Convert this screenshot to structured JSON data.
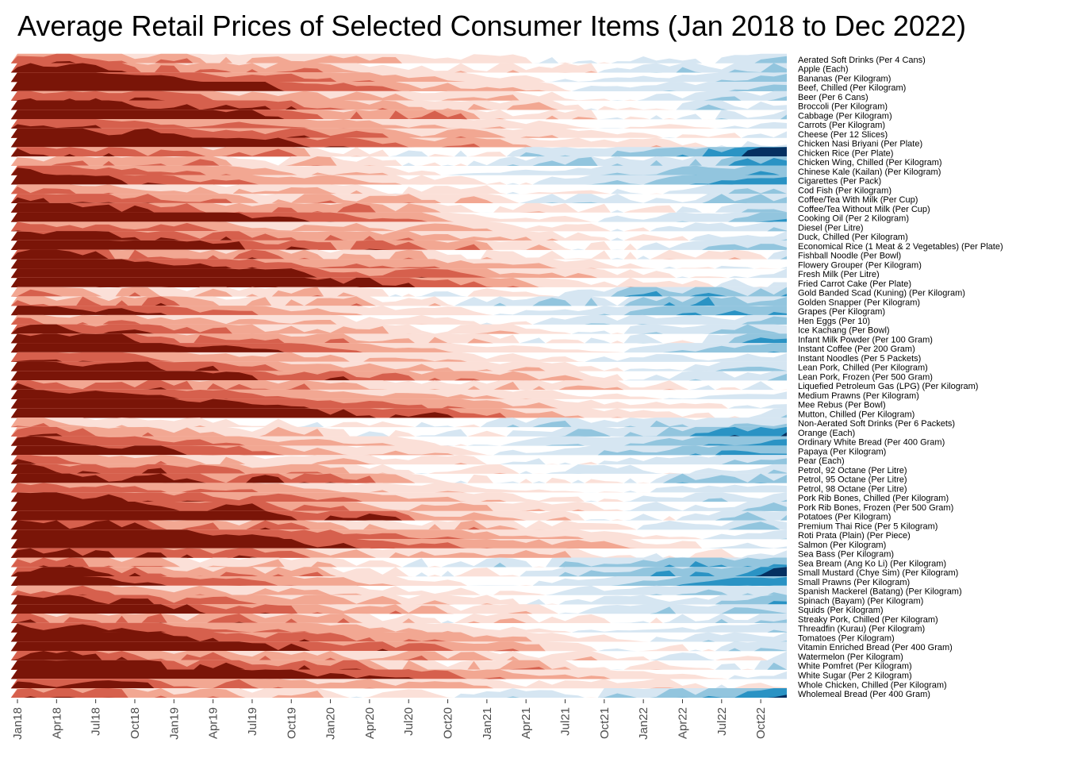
{
  "chart_data": {
    "type": "heatmap",
    "title": "Average Retail Prices of Selected Consumer Items (Jan 2018 to Dec 2022)",
    "xlabel": "",
    "ylabel": "",
    "x_tick_labels": [
      "Jan18",
      "Apr18",
      "Jul18",
      "Oct18",
      "Jan19",
      "Apr19",
      "Jul19",
      "Oct19",
      "Jan20",
      "Apr20",
      "Jul20",
      "Oct20",
      "Jan21",
      "Apr21",
      "Jul21",
      "Oct21",
      "Jan22",
      "Apr22",
      "Jul22",
      "Oct22"
    ],
    "n_months": 60,
    "encoding": "horizon",
    "color_scale": {
      "negative": [
        "#FBE0D8",
        "#F2A792",
        "#D6604D",
        "#7A1508"
      ],
      "positive": [
        "#D6E6F2",
        "#92C5DE",
        "#2A93C4",
        "#053061"
      ]
    },
    "items": [
      "Aerated Soft Drinks (Per 4 Cans)",
      "Apple (Each)",
      "Bananas (Per Kilogram)",
      "Beef, Chilled (Per Kilogram)",
      "Beer (Per 6 Cans)",
      "Broccoli (Per Kilogram)",
      "Cabbage (Per Kilogram)",
      "Carrots (Per Kilogram)",
      "Cheese (Per 12 Slices)",
      "Chicken Nasi Briyani (Per Plate)",
      "Chicken Rice (Per Plate)",
      "Chicken Wing, Chilled (Per Kilogram)",
      "Chinese Kale (Kailan) (Per Kilogram)",
      "Cigarettes (Per Pack)",
      "Cod Fish (Per Kilogram)",
      "Coffee/Tea With Milk (Per Cup)",
      "Coffee/Tea Without Milk (Per Cup)",
      "Cooking Oil (Per 2 Kilogram)",
      "Diesel (Per Litre)",
      "Duck, Chilled (Per Kilogram)",
      "Economical Rice (1 Meat & 2 Vegetables) (Per Plate)",
      "Fishball Noodle (Per Bowl)",
      "Flowery Grouper (Per Kilogram)",
      "Fresh Milk (Per Litre)",
      "Fried Carrot Cake (Per Plate)",
      "Gold Banded Scad (Kuning) (Per Kilogram)",
      "Golden Snapper (Per Kilogram)",
      "Grapes (Per Kilogram)",
      "Hen Eggs (Per 10)",
      "Ice Kachang (Per Bowl)",
      "Infant Milk Powder (Per 100 Gram)",
      "Instant Coffee (Per 200 Gram)",
      "Instant Noodles (Per 5 Packets)",
      "Lean Pork, Chilled (Per Kilogram)",
      "Lean Pork, Frozen (Per 500 Gram)",
      "Liquefied Petroleum Gas (LPG) (Per Kilogram)",
      "Medium Prawns (Per Kilogram)",
      "Mee Rebus (Per Bowl)",
      "Mutton, Chilled (Per Kilogram)",
      "Non-Aerated Soft Drinks (Per 6 Packets)",
      "Orange (Each)",
      "Ordinary White Bread (Per 400 Gram)",
      "Papaya (Per Kilogram)",
      "Pear (Each)",
      "Petrol, 92 Octane (Per Litre)",
      "Petrol, 95 Octane (Per Litre)",
      "Petrol, 98 Octane (Per Litre)",
      "Pork Rib Bones, Chilled (Per Kilogram)",
      "Pork Rib Bones, Frozen (Per 500 Gram)",
      "Potatoes (Per Kilogram)",
      "Premium Thai Rice (Per 5 Kilogram)",
      "Roti Prata (Plain) (Per Piece)",
      "Salmon (Per Kilogram)",
      "Sea Bass (Per Kilogram)",
      "Sea Bream (Ang Ko Li) (Per Kilogram)",
      "Small Mustard (Chye Sim) (Per Kilogram)",
      "Small Prawns (Per Kilogram)",
      "Spanish Mackerel (Batang) (Per Kilogram)",
      "Spinach (Bayam) (Per Kilogram)",
      "Squids (Per Kilogram)",
      "Streaky Pork, Chilled (Per Kilogram)",
      "Threadfin (Kurau) (Per Kilogram)",
      "Tomatoes (Per Kilogram)",
      "Vitamin Enriched Bread (Per 400 Gram)",
      "Watermelon (Per Kilogram)",
      "White Pomfret (Per Kilogram)",
      "White Sugar (Per 2 Kilogram)",
      "Whole Chicken, Chilled (Per Kilogram)",
      "Wholemeal Bread (Per 400 Gram)"
    ],
    "legend": "none",
    "grid": false
  }
}
